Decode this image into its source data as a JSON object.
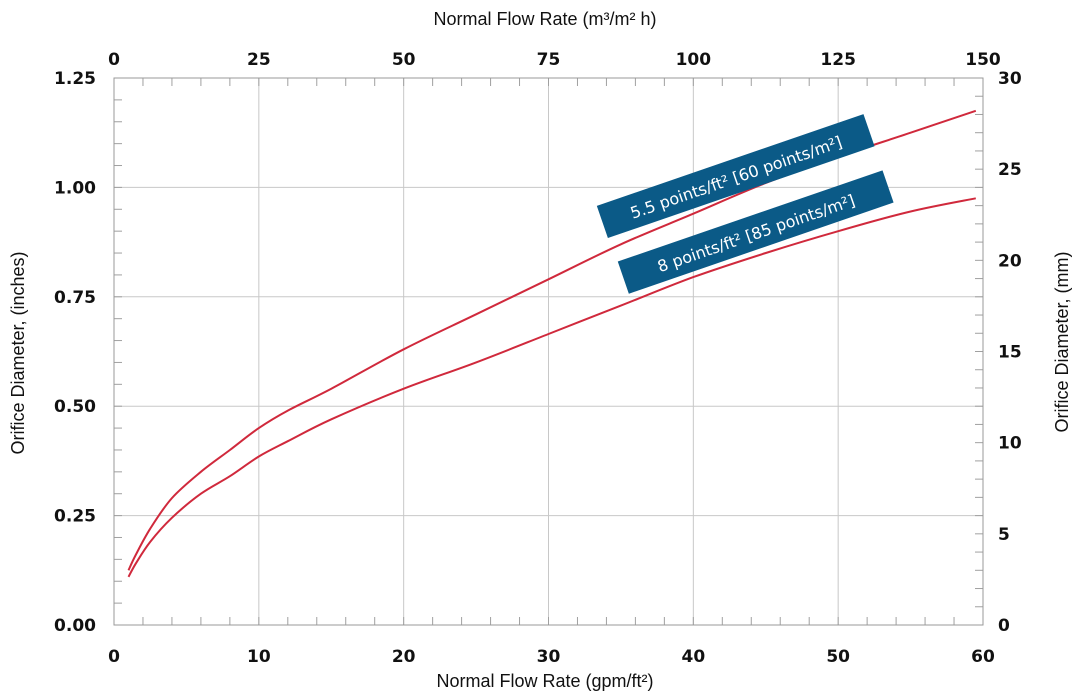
{
  "chart_data": {
    "type": "line",
    "title": "",
    "xlabel": "Normal Flow Rate (gpm/ft²)",
    "ylabel": "Orifice Diameter, (inches)",
    "x2label": "Normal Flow Rate (m³/m² h)",
    "y2label": "Orifice Diameter, (mm)",
    "xlim": [
      0,
      60
    ],
    "ylim": [
      0,
      1.25
    ],
    "x2lim": [
      0,
      150
    ],
    "y2lim": [
      0,
      30
    ],
    "x_ticks": [
      "0",
      "10",
      "20",
      "30",
      "40",
      "50",
      "60"
    ],
    "y_ticks": [
      "0.00",
      "0.25",
      "0.50",
      "0.75",
      "1.00",
      "1.25"
    ],
    "x2_ticks": [
      "0",
      "25",
      "50",
      "75",
      "100",
      "125",
      "150"
    ],
    "y2_ticks": [
      "0",
      "5",
      "10",
      "15",
      "20",
      "25",
      "30"
    ],
    "grid": true,
    "line_color": "#d0293c",
    "label_bg": "#0b5a87",
    "series": [
      {
        "name": "5.5 points/ft² [60 points/m²]",
        "x": [
          1.0,
          1.5,
          2.5,
          4,
          6,
          8,
          10,
          12,
          15,
          20,
          25,
          30,
          35,
          40,
          45,
          50,
          55,
          59.5
        ],
        "y": [
          0.125,
          0.16,
          0.22,
          0.29,
          0.35,
          0.4,
          0.45,
          0.49,
          0.54,
          0.63,
          0.71,
          0.79,
          0.87,
          0.94,
          1.01,
          1.07,
          1.125,
          1.175
        ]
      },
      {
        "name": "8 points/ft² [85 points/m²]",
        "x": [
          1.0,
          1.5,
          2.5,
          4,
          6,
          8,
          10,
          12,
          15,
          20,
          25,
          30,
          35,
          40,
          45,
          50,
          55,
          59.5
        ],
        "y": [
          0.11,
          0.14,
          0.19,
          0.245,
          0.3,
          0.34,
          0.385,
          0.42,
          0.47,
          0.54,
          0.6,
          0.665,
          0.73,
          0.795,
          0.85,
          0.9,
          0.945,
          0.975
        ]
      }
    ]
  }
}
